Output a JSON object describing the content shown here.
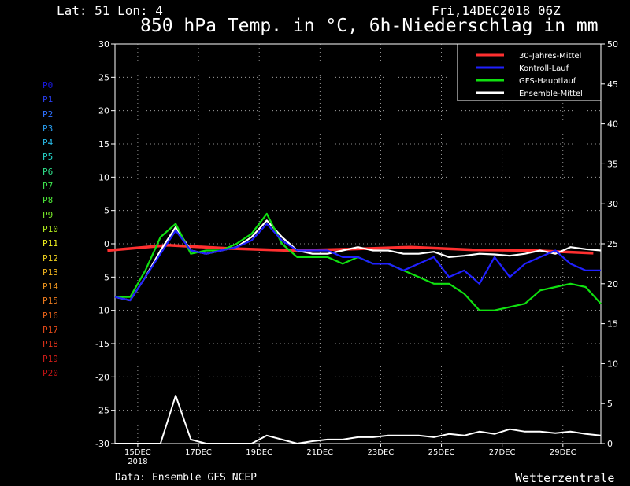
{
  "header": {
    "latlon": "Lat: 51 Lon: 4",
    "date": "Fri,14DEC2018 06Z",
    "title": "850 hPa Temp. in °C, 6h-Niederschlag in mm"
  },
  "footer": {
    "source": "Data: Ensemble GFS NCEP",
    "brand": "Wetterzentrale"
  },
  "members": [
    {
      "label": "P0",
      "color": "#1a1ae6"
    },
    {
      "label": "P1",
      "color": "#2a3ff0"
    },
    {
      "label": "P2",
      "color": "#2f72ff"
    },
    {
      "label": "P3",
      "color": "#2a9ef0"
    },
    {
      "label": "P4",
      "color": "#27b9e6"
    },
    {
      "label": "P5",
      "color": "#25d2c8"
    },
    {
      "label": "P6",
      "color": "#2fe08a"
    },
    {
      "label": "P7",
      "color": "#3ee84f"
    },
    {
      "label": "P8",
      "color": "#4ee83a"
    },
    {
      "label": "P9",
      "color": "#7aeb2a"
    },
    {
      "label": "P10",
      "color": "#b4f01e"
    },
    {
      "label": "P11",
      "color": "#f0f01e"
    },
    {
      "label": "P12",
      "color": "#f0d21e"
    },
    {
      "label": "P13",
      "color": "#f0b41e"
    },
    {
      "label": "P14",
      "color": "#f0961e"
    },
    {
      "label": "P15",
      "color": "#f07d1e"
    },
    {
      "label": "P16",
      "color": "#eb6419"
    },
    {
      "label": "P17",
      "color": "#e64b19"
    },
    {
      "label": "P18",
      "color": "#e13219"
    },
    {
      "label": "P19",
      "color": "#d21e19"
    },
    {
      "label": "P20",
      "color": "#c31414"
    }
  ],
  "chart_data": {
    "type": "line",
    "title": "850 hPa Temp. in °C, 6h-Niederschlag in mm",
    "xlabel": "",
    "ylabel_left": "°C",
    "ylabel_right": "mm",
    "x_start": "2018-12-14 06Z",
    "x_end": "2018-12-30 06Z",
    "x_ticks": [
      "15DEC",
      "17DEC",
      "19DEC",
      "21DEC",
      "23DEC",
      "25DEC",
      "27DEC",
      "29DEC"
    ],
    "x_tick_sub": "2018",
    "ylim_left": [
      -30,
      30
    ],
    "yticks_left": [
      -30,
      -25,
      -20,
      -15,
      -10,
      -5,
      0,
      5,
      10,
      15,
      20,
      25,
      30
    ],
    "ylim_right": [
      0,
      50
    ],
    "yticks_right": [
      0,
      5,
      10,
      15,
      20,
      25,
      30,
      35,
      40,
      45,
      50
    ],
    "grid": true,
    "legend_position": "top-right",
    "legend": [
      {
        "name": "30-Jahres-Mittel",
        "color": "#ff3030"
      },
      {
        "name": "Kontroll-Lauf",
        "color": "#2020ff"
      },
      {
        "name": "GFS-Hauptlauf",
        "color": "#10e010"
      },
      {
        "name": "Ensemble-Mittel",
        "color": "#ffffff"
      }
    ],
    "series": [
      {
        "name": "30-Jahres-Mittel",
        "axis": "left",
        "color": "#ff3030",
        "x": [
          "2018-12-14",
          "2018-12-16",
          "2018-12-18",
          "2018-12-20",
          "2018-12-22",
          "2018-12-24",
          "2018-12-26",
          "2018-12-28",
          "2018-12-30"
        ],
        "values": [
          -1,
          -0.2,
          -0.7,
          -1,
          -0.8,
          -0.5,
          -0.9,
          -1,
          -1.4
        ]
      },
      {
        "name": "Ensemble-Mittel",
        "axis": "left",
        "color": "#ffffff",
        "x": [
          "2018-12-14 06Z",
          "2018-12-14 18Z",
          "2018-12-15 06Z",
          "2018-12-15 18Z",
          "2018-12-16 06Z",
          "2018-12-16 18Z",
          "2018-12-17 06Z",
          "2018-12-17 18Z",
          "2018-12-18 06Z",
          "2018-12-18 18Z",
          "2018-12-19 06Z",
          "2018-12-19 18Z",
          "2018-12-20 06Z",
          "2018-12-20 18Z",
          "2018-12-21 06Z",
          "2018-12-21 18Z",
          "2018-12-22 06Z",
          "2018-12-22 18Z",
          "2018-12-23 06Z",
          "2018-12-23 18Z",
          "2018-12-24 06Z",
          "2018-12-24 18Z",
          "2018-12-25 06Z",
          "2018-12-25 18Z",
          "2018-12-26 06Z",
          "2018-12-26 18Z",
          "2018-12-27 06Z",
          "2018-12-27 18Z",
          "2018-12-28 06Z",
          "2018-12-28 18Z",
          "2018-12-29 06Z",
          "2018-12-29 18Z",
          "2018-12-30 06Z"
        ],
        "values": [
          -8,
          -8.5,
          -5,
          -1,
          2.5,
          -1,
          -1.5,
          -1,
          -0.5,
          1,
          3.5,
          1,
          -1,
          -1.5,
          -1.5,
          -1,
          -0.5,
          -1,
          -1,
          -1.5,
          -1.5,
          -1.2,
          -2,
          -1.8,
          -1.5,
          -1.6,
          -1.8,
          -1.5,
          -1,
          -1.5,
          -0.5,
          -0.8,
          -1
        ]
      },
      {
        "name": "GFS-Hauptlauf",
        "axis": "left",
        "color": "#10e010",
        "x": [
          "2018-12-14 06Z",
          "2018-12-14 18Z",
          "2018-12-15 06Z",
          "2018-12-15 18Z",
          "2018-12-16 06Z",
          "2018-12-16 18Z",
          "2018-12-17 06Z",
          "2018-12-17 18Z",
          "2018-12-18 06Z",
          "2018-12-18 18Z",
          "2018-12-19 06Z",
          "2018-12-19 18Z",
          "2018-12-20 06Z",
          "2018-12-20 18Z",
          "2018-12-21 06Z",
          "2018-12-21 18Z",
          "2018-12-22 06Z",
          "2018-12-22 18Z",
          "2018-12-23 06Z",
          "2018-12-23 18Z",
          "2018-12-24 06Z",
          "2018-12-24 18Z",
          "2018-12-25 06Z",
          "2018-12-25 18Z",
          "2018-12-26 06Z",
          "2018-12-26 18Z",
          "2018-12-27 06Z",
          "2018-12-27 18Z",
          "2018-12-28 06Z",
          "2018-12-28 18Z",
          "2018-12-29 06Z",
          "2018-12-29 18Z",
          "2018-12-30 06Z"
        ],
        "values": [
          -8,
          -8,
          -4,
          1,
          3,
          -1.5,
          -1,
          -1,
          0,
          1.5,
          4.5,
          0,
          -2,
          -2,
          -2,
          -3,
          -2,
          -3,
          -3,
          -4,
          -5,
          -6,
          -6,
          -7.5,
          -10,
          -10,
          -9.5,
          -9,
          -7,
          -6.5,
          -6,
          -6.5,
          -9
        ]
      },
      {
        "name": "Kontroll-Lauf",
        "axis": "left",
        "color": "#2020ff",
        "x": [
          "2018-12-14 06Z",
          "2018-12-14 18Z",
          "2018-12-15 06Z",
          "2018-12-15 18Z",
          "2018-12-16 06Z",
          "2018-12-16 18Z",
          "2018-12-17 06Z",
          "2018-12-17 18Z",
          "2018-12-18 06Z",
          "2018-12-18 18Z",
          "2018-12-19 06Z",
          "2018-12-19 18Z",
          "2018-12-20 06Z",
          "2018-12-20 18Z",
          "2018-12-21 06Z",
          "2018-12-21 18Z",
          "2018-12-22 06Z",
          "2018-12-22 18Z",
          "2018-12-23 06Z",
          "2018-12-23 18Z",
          "2018-12-24 06Z",
          "2018-12-24 18Z",
          "2018-12-25 06Z",
          "2018-12-25 18Z",
          "2018-12-26 06Z",
          "2018-12-26 18Z",
          "2018-12-27 06Z",
          "2018-12-27 18Z",
          "2018-12-28 06Z",
          "2018-12-28 18Z",
          "2018-12-29 06Z",
          "2018-12-29 18Z",
          "2018-12-30 06Z"
        ],
        "values": [
          -8,
          -8.5,
          -5,
          -1.5,
          2,
          -1,
          -1.5,
          -1,
          -0.5,
          0.5,
          3,
          0.5,
          -1,
          -1,
          -1,
          -2,
          -2,
          -3,
          -3,
          -4,
          -3,
          -2,
          -5,
          -4,
          -6,
          -2,
          -5,
          -3,
          -2,
          -1,
          -3,
          -4,
          -4
        ]
      },
      {
        "name": "Ensemble-Mittel Niederschlag",
        "axis": "right",
        "color": "#ffffff",
        "x": [
          "2018-12-14 06Z",
          "2018-12-14 18Z",
          "2018-12-15 06Z",
          "2018-12-15 18Z",
          "2018-12-16 06Z",
          "2018-12-16 18Z",
          "2018-12-17 06Z",
          "2018-12-17 18Z",
          "2018-12-18 06Z",
          "2018-12-18 18Z",
          "2018-12-19 06Z",
          "2018-12-19 18Z",
          "2018-12-20 06Z",
          "2018-12-20 18Z",
          "2018-12-21 06Z",
          "2018-12-21 18Z",
          "2018-12-22 06Z",
          "2018-12-22 18Z",
          "2018-12-23 06Z",
          "2018-12-23 18Z",
          "2018-12-24 06Z",
          "2018-12-24 18Z",
          "2018-12-25 06Z",
          "2018-12-25 18Z",
          "2018-12-26 06Z",
          "2018-12-26 18Z",
          "2018-12-27 06Z",
          "2018-12-27 18Z",
          "2018-12-28 06Z",
          "2018-12-28 18Z",
          "2018-12-29 06Z",
          "2018-12-29 18Z",
          "2018-12-30 06Z"
        ],
        "values": [
          0,
          0,
          0,
          0,
          6,
          0.5,
          0,
          0,
          0,
          0,
          1,
          0.5,
          0,
          0.3,
          0.5,
          0.5,
          0.8,
          0.8,
          1,
          1,
          1,
          0.8,
          1.2,
          1,
          1.5,
          1.2,
          1.8,
          1.5,
          1.5,
          1.3,
          1.5,
          1.2,
          1
        ]
      }
    ]
  }
}
